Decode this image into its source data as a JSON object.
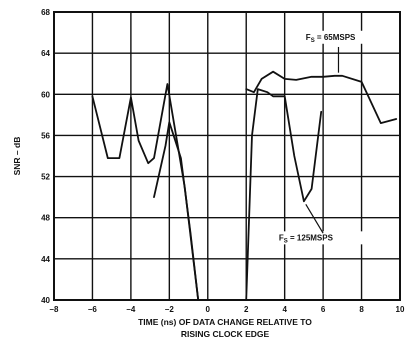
{
  "chart_data": {
    "type": "line",
    "title": "",
    "xlabel_line1": "TIME (ns) OF DATA CHANGE RELATIVE TO",
    "xlabel_line2": "RISING CLOCK EDGE",
    "ylabel": "SNR – dB",
    "xlim": [
      -8,
      10
    ],
    "ylim": [
      40,
      68
    ],
    "x_ticks": [
      "–8",
      "–6",
      "–4",
      "–2",
      "0",
      "2",
      "4",
      "6",
      "8",
      "10"
    ],
    "x_tick_values": [
      -8,
      -6,
      -4,
      -2,
      0,
      2,
      4,
      6,
      8,
      10
    ],
    "y_ticks": [
      "68",
      "64",
      "60",
      "56",
      "52",
      "48",
      "44",
      "40"
    ],
    "y_tick_values": [
      68,
      64,
      60,
      56,
      52,
      48,
      44,
      40
    ],
    "grid": true,
    "series": [
      {
        "name": "FS = 65MSPS",
        "label_main": "F",
        "label_sub": "S",
        "label_rest": " = 65MSPS",
        "segments": [
          [
            [
              -6,
              59.8
            ],
            [
              -5.2,
              53.8
            ],
            [
              -4.6,
              53.8
            ],
            [
              -4.0,
              59.7
            ],
            [
              -3.6,
              55.5
            ],
            [
              -3.1,
              53.3
            ],
            [
              -2.8,
              53.8
            ],
            [
              -2.1,
              61.0
            ],
            [
              -1.2,
              51.0
            ],
            [
              -0.5,
              40
            ]
          ],
          [
            [
              2.0,
              60.5
            ],
            [
              2.4,
              60.2
            ],
            [
              2.8,
              61.5
            ],
            [
              3.4,
              62.2
            ],
            [
              4.0,
              61.5
            ],
            [
              4.6,
              61.4
            ],
            [
              5.4,
              61.7
            ],
            [
              6.0,
              61.7
            ],
            [
              6.6,
              61.8
            ],
            [
              7.0,
              61.8
            ],
            [
              8.0,
              61.2
            ],
            [
              9.0,
              57.2
            ],
            [
              9.8,
              57.6
            ]
          ]
        ]
      },
      {
        "name": "FS = 125MSPS",
        "label_main": "F",
        "label_sub": "S",
        "label_rest": " = 125MSPS",
        "segments": [
          [
            [
              -2.8,
              50.0
            ],
            [
              -2.2,
              55.0
            ],
            [
              -2.0,
              57.3
            ],
            [
              -1.4,
              53.8
            ],
            [
              -0.9,
              46.5
            ],
            [
              -0.5,
              40
            ]
          ],
          [
            [
              2.0,
              40
            ],
            [
              2.3,
              56.0
            ],
            [
              2.6,
              60.5
            ],
            [
              3.1,
              60.2
            ],
            [
              3.4,
              59.8
            ],
            [
              4.0,
              59.8
            ],
            [
              4.5,
              54.0
            ],
            [
              5.0,
              49.6
            ],
            [
              5.4,
              50.8
            ],
            [
              5.9,
              58.3
            ]
          ]
        ]
      }
    ]
  }
}
